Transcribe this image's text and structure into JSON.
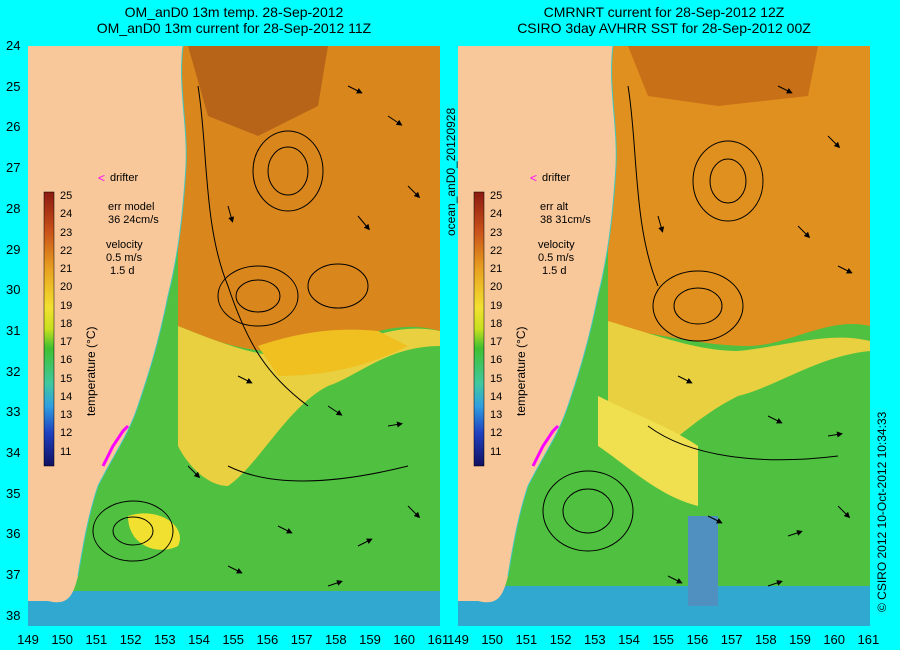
{
  "left": {
    "title_line1": "OM_anD0 13m temp. 28-Sep-2012",
    "title_line2": "OM_anD0 13m current for 28-Sep-2012 11Z",
    "drifter_label": "drifter",
    "err_line1": "err model",
    "err_line2": "36 24cm/s",
    "velocity_label": "velocity",
    "velocity_scale1": "0.5 m/s",
    "velocity_scale2": "1.5 d",
    "colorbar_label": "temperature (°C)"
  },
  "right": {
    "title_line1": "CMRNRT current for 28-Sep-2012 12Z",
    "title_line2": "CSIRO 3day AVHRR SST for 28-Sep-2012 00Z",
    "drifter_label": "drifter",
    "err_line1": "err alt",
    "err_line2": "38 31cm/s",
    "velocity_label": "velocity",
    "velocity_scale1": "0.5 m/s",
    "velocity_scale2": "1.5 d",
    "colorbar_label": "temperature (°C)"
  },
  "side_label": "ocean_anD0_20120928",
  "credit_label": "© CSIRO 2012   10-Oct-2012 10:34:33",
  "colorbar_ticks": [
    "25",
    "24",
    "23",
    "22",
    "21",
    "20",
    "19",
    "18",
    "17",
    "16",
    "15",
    "14",
    "13",
    "12",
    "11"
  ],
  "latitudes": [
    "24",
    "25",
    "26",
    "27",
    "28",
    "29",
    "30",
    "31",
    "32",
    "33",
    "34",
    "35",
    "36",
    "37",
    "38"
  ],
  "longitudes": [
    "149",
    "150",
    "151",
    "152",
    "153",
    "154",
    "155",
    "156",
    "157",
    "158",
    "159",
    "160",
    "161"
  ],
  "colors": {
    "background": "#00ffff",
    "land": "#f9c89a",
    "warm_ocean": "#d9861d",
    "mid_ocean": "#f0c020",
    "cool_ocean": "#50c040",
    "drifter": "#ff00ff"
  }
}
